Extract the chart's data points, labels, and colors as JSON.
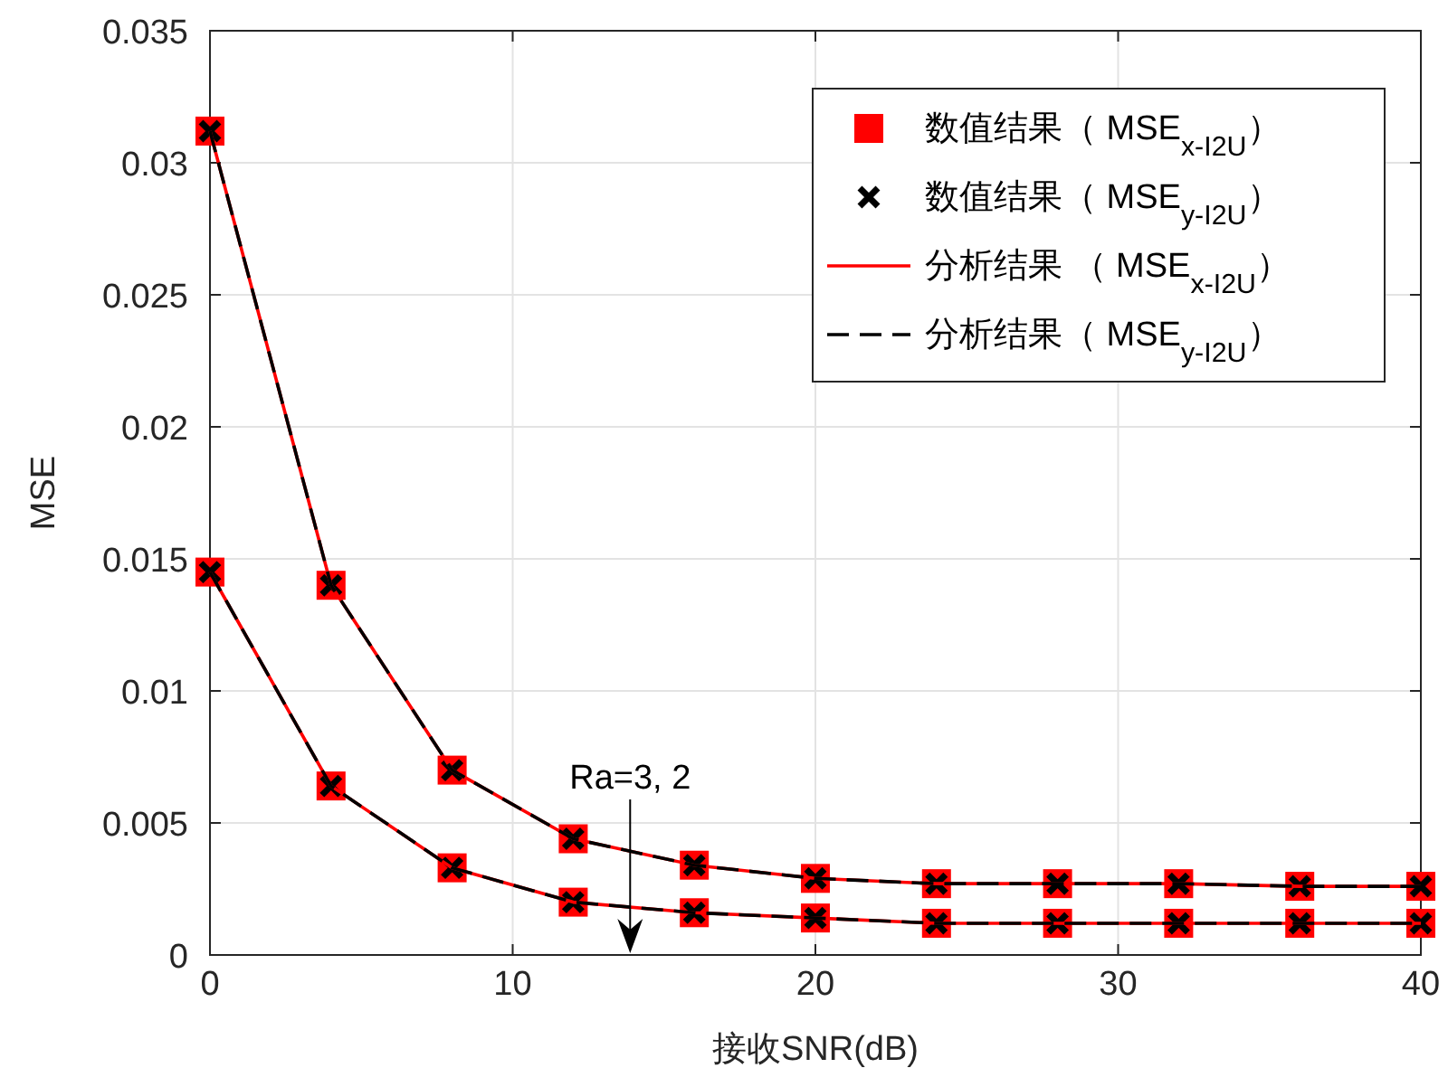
{
  "chart_data": {
    "type": "line",
    "xlabel": "接收SNR(dB)",
    "ylabel": "MSE",
    "x": [
      0,
      4,
      8,
      12,
      16,
      20,
      24,
      28,
      32,
      36,
      40
    ],
    "xlim": [
      0,
      40
    ],
    "xticks": [
      0,
      10,
      20,
      30,
      40
    ],
    "ylim": [
      0,
      0.035
    ],
    "yticks": [
      0,
      0.005,
      0.01,
      0.015,
      0.02,
      0.025,
      0.03,
      0.035
    ],
    "grid": true,
    "legend": "top right",
    "series": [
      {
        "name": "数值结果（ MSE$_{x-I2U}$）",
        "type": "scatter",
        "marker": "square",
        "color": "#ff0000",
        "values": [
          0.0312,
          0.014,
          0.007,
          0.0044,
          0.0034,
          0.0029,
          0.0027,
          0.0027,
          0.0027,
          0.0026,
          0.0026
        ]
      },
      {
        "name": "数值结果（ MSE$_{y-I2U}$）",
        "type": "scatter",
        "marker": "cross",
        "color": "#000000",
        "values": [
          0.0312,
          0.014,
          0.007,
          0.0044,
          0.0034,
          0.0029,
          0.0027,
          0.0027,
          0.0027,
          0.0026,
          0.0026
        ]
      },
      {
        "name": "分析结果 （ MSE$_{x-I2U}$）",
        "line_style": "solid",
        "color": "#ff0000",
        "values": [
          0.0312,
          0.014,
          0.007,
          0.0044,
          0.0034,
          0.0029,
          0.0027,
          0.0027,
          0.0027,
          0.0026,
          0.0026
        ]
      },
      {
        "name": "分析结果（ MSE$_{y-I2U}$）",
        "line_style": "dashed",
        "color": "#000000",
        "values": [
          0.0312,
          0.014,
          0.007,
          0.0044,
          0.0034,
          0.0029,
          0.0027,
          0.0027,
          0.0027,
          0.0026,
          0.0026
        ]
      },
      {
        "type": "scatter",
        "marker": "square",
        "color": "#ff0000",
        "values": [
          0.0145,
          0.0064,
          0.0033,
          0.002,
          0.0016,
          0.0014,
          0.0012,
          0.0012,
          0.0012,
          0.0012,
          0.0012
        ]
      },
      {
        "type": "scatter",
        "marker": "cross",
        "color": "#000000",
        "values": [
          0.0145,
          0.0064,
          0.0033,
          0.002,
          0.0016,
          0.0014,
          0.0012,
          0.0012,
          0.0012,
          0.0012,
          0.0012
        ]
      },
      {
        "line_style": "solid",
        "color": "#ff0000",
        "values": [
          0.0145,
          0.0064,
          0.0033,
          0.002,
          0.0016,
          0.0014,
          0.0012,
          0.0012,
          0.0012,
          0.0012,
          0.0012
        ]
      },
      {
        "line_style": "dashed",
        "color": "#000000",
        "values": [
          0.0145,
          0.0064,
          0.0033,
          0.002,
          0.0016,
          0.0014,
          0.0012,
          0.0012,
          0.0012,
          0.0012,
          0.0012
        ]
      }
    ],
    "annotations": [
      "Ra=3, 2"
    ]
  }
}
